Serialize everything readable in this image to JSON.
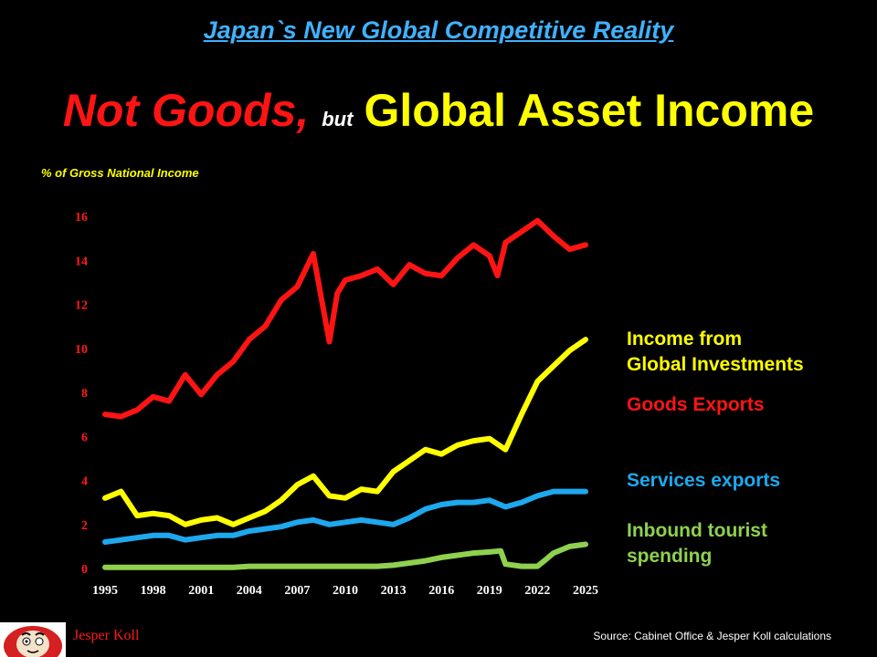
{
  "header": {
    "heading": "Japan`s New Global Competitive Reality",
    "title_part1": "Not Goods,",
    "title_part2": "but",
    "title_part3": "Global Asset Income"
  },
  "footer": {
    "author": "Jesper Koll",
    "source": "Source: Cabinet Office & Jesper Koll calculations"
  },
  "chart_data": {
    "type": "line",
    "title": "",
    "xlabel": "",
    "ylabel": "% of Gross National Income",
    "xlim": [
      1995,
      2025
    ],
    "ylim": [
      0,
      16
    ],
    "xticks": [
      "1995",
      "1998",
      "2001",
      "2004",
      "2007",
      "2010",
      "2013",
      "2016",
      "2019",
      "2022",
      "2025"
    ],
    "yticks": [
      "0",
      "2",
      "4",
      "6",
      "8",
      "10",
      "12",
      "14",
      "16"
    ],
    "grid": false,
    "legend": "right",
    "series": [
      {
        "name": "Goods Exports",
        "name_lines": [
          "Goods Exports"
        ],
        "color": "#ff1414",
        "legend_y": 7.4,
        "points": [
          [
            1995,
            7.0
          ],
          [
            1996,
            6.9
          ],
          [
            1997,
            7.2
          ],
          [
            1998,
            7.8
          ],
          [
            1999,
            7.6
          ],
          [
            2000,
            8.8
          ],
          [
            2001,
            7.9
          ],
          [
            2002,
            8.8
          ],
          [
            2003,
            9.4
          ],
          [
            2004,
            10.4
          ],
          [
            2005,
            11.0
          ],
          [
            2006,
            12.2
          ],
          [
            2007,
            12.8
          ],
          [
            2008,
            14.3
          ],
          [
            2008.7,
            11.5
          ],
          [
            2009,
            10.3
          ],
          [
            2009.5,
            12.5
          ],
          [
            2010,
            13.1
          ],
          [
            2011,
            13.3
          ],
          [
            2012,
            13.6
          ],
          [
            2013,
            12.9
          ],
          [
            2014,
            13.8
          ],
          [
            2015,
            13.4
          ],
          [
            2016,
            13.3
          ],
          [
            2017,
            14.1
          ],
          [
            2018,
            14.7
          ],
          [
            2019,
            14.2
          ],
          [
            2019.5,
            13.3
          ],
          [
            2020,
            14.8
          ],
          [
            2021,
            15.3
          ],
          [
            2022,
            15.8
          ],
          [
            2023,
            15.1
          ],
          [
            2024,
            14.5
          ],
          [
            2025,
            14.7
          ]
        ]
      },
      {
        "name": "Income from Global Investments",
        "name_lines": [
          "Income from",
          "Global Investments"
        ],
        "color": "#ffff00",
        "legend_y": 10.4,
        "points": [
          [
            1995,
            3.2
          ],
          [
            1996,
            3.5
          ],
          [
            1997,
            2.4
          ],
          [
            1998,
            2.5
          ],
          [
            1999,
            2.4
          ],
          [
            2000,
            2.0
          ],
          [
            2001,
            2.2
          ],
          [
            2002,
            2.3
          ],
          [
            2003,
            2.0
          ],
          [
            2004,
            2.3
          ],
          [
            2005,
            2.6
          ],
          [
            2006,
            3.1
          ],
          [
            2007,
            3.8
          ],
          [
            2008,
            4.2
          ],
          [
            2009,
            3.3
          ],
          [
            2010,
            3.2
          ],
          [
            2011,
            3.6
          ],
          [
            2012,
            3.5
          ],
          [
            2013,
            4.4
          ],
          [
            2014,
            4.9
          ],
          [
            2015,
            5.4
          ],
          [
            2016,
            5.2
          ],
          [
            2017,
            5.6
          ],
          [
            2018,
            5.8
          ],
          [
            2019,
            5.9
          ],
          [
            2020,
            5.4
          ],
          [
            2021,
            7.0
          ],
          [
            2022,
            8.5
          ],
          [
            2023,
            9.2
          ],
          [
            2024,
            9.9
          ],
          [
            2025,
            10.4
          ]
        ]
      },
      {
        "name": "Services exports",
        "name_lines": [
          "Services exports"
        ],
        "color": "#1ea8ee",
        "legend_y": 4.0,
        "points": [
          [
            1995,
            1.2
          ],
          [
            1996,
            1.3
          ],
          [
            1997,
            1.4
          ],
          [
            1998,
            1.5
          ],
          [
            1999,
            1.5
          ],
          [
            2000,
            1.3
          ],
          [
            2001,
            1.4
          ],
          [
            2002,
            1.5
          ],
          [
            2003,
            1.5
          ],
          [
            2004,
            1.7
          ],
          [
            2005,
            1.8
          ],
          [
            2006,
            1.9
          ],
          [
            2007,
            2.1
          ],
          [
            2008,
            2.2
          ],
          [
            2009,
            2.0
          ],
          [
            2010,
            2.1
          ],
          [
            2011,
            2.2
          ],
          [
            2012,
            2.1
          ],
          [
            2013,
            2.0
          ],
          [
            2014,
            2.3
          ],
          [
            2015,
            2.7
          ],
          [
            2016,
            2.9
          ],
          [
            2017,
            3.0
          ],
          [
            2018,
            3.0
          ],
          [
            2019,
            3.1
          ],
          [
            2020,
            2.8
          ],
          [
            2021,
            3.0
          ],
          [
            2022,
            3.3
          ],
          [
            2023,
            3.5
          ],
          [
            2024,
            3.5
          ],
          [
            2025,
            3.5
          ]
        ]
      },
      {
        "name": "Inbound tourist spending",
        "name_lines": [
          "Inbound tourist",
          "spending"
        ],
        "color": "#8fd14f",
        "legend_y": 1.7,
        "points": [
          [
            1995,
            0.05
          ],
          [
            2000,
            0.05
          ],
          [
            2003,
            0.05
          ],
          [
            2004,
            0.1
          ],
          [
            2008,
            0.1
          ],
          [
            2010,
            0.1
          ],
          [
            2012,
            0.1
          ],
          [
            2013,
            0.15
          ],
          [
            2014,
            0.25
          ],
          [
            2015,
            0.35
          ],
          [
            2016,
            0.5
          ],
          [
            2017,
            0.6
          ],
          [
            2018,
            0.7
          ],
          [
            2019,
            0.75
          ],
          [
            2019.7,
            0.8
          ],
          [
            2020,
            0.2
          ],
          [
            2021,
            0.1
          ],
          [
            2022,
            0.1
          ],
          [
            2022.5,
            0.4
          ],
          [
            2023,
            0.7
          ],
          [
            2024,
            1.0
          ],
          [
            2025,
            1.1
          ]
        ]
      }
    ]
  }
}
